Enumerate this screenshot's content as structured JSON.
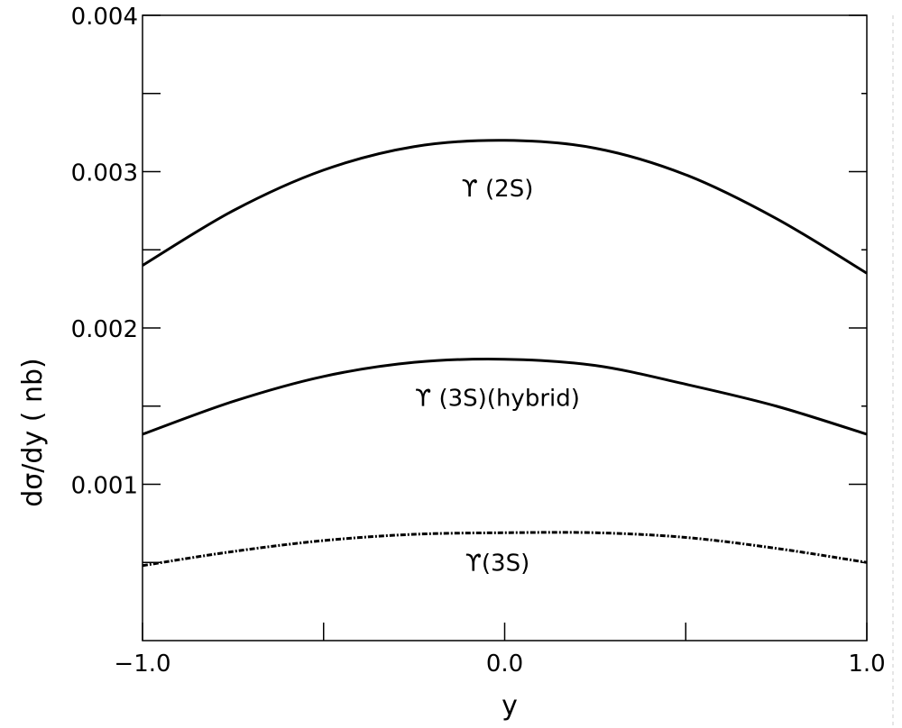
{
  "chart_data": {
    "type": "line",
    "title": "",
    "xlabel": "y",
    "ylabel": "dσ/dy ( nb)",
    "xlim": [
      -1.0,
      1.0
    ],
    "ylim": [
      0.0,
      0.004
    ],
    "x_ticks": [
      -1.0,
      0.0,
      1.0
    ],
    "x_tick_labels": [
      "−1.0",
      "0.0",
      "1.0"
    ],
    "x_minor_ticks": [
      -0.5,
      0.5
    ],
    "y_ticks": [
      0.001,
      0.002,
      0.003,
      0.004
    ],
    "y_tick_labels": [
      "0.001",
      "0.002",
      "0.003",
      "0.004"
    ],
    "y_minor_ticks": [
      0.0005,
      0.0015,
      0.0025,
      0.0035
    ],
    "grid": false,
    "legend": "none",
    "x": [
      -1.0,
      -0.75,
      -0.5,
      -0.25,
      0.0,
      0.25,
      0.5,
      0.75,
      1.0
    ],
    "series": [
      {
        "name": "ϒ (2S)",
        "style": "solid",
        "values": [
          0.0024,
          0.00275,
          0.00301,
          0.00316,
          0.0032,
          0.00315,
          0.00298,
          0.0027,
          0.00235
        ]
      },
      {
        "name": "ϒ (3S)(hybrid)",
        "style": "solid",
        "values": [
          0.00132,
          0.00153,
          0.00169,
          0.00178,
          0.0018,
          0.00176,
          0.00164,
          0.0015,
          0.00132
        ]
      },
      {
        "name": "ϒ(3S)",
        "style": "dash-dot",
        "values": [
          0.00048,
          0.00057,
          0.00064,
          0.00068,
          0.00069,
          0.00069,
          0.00066,
          0.00059,
          0.0005
        ]
      }
    ]
  }
}
